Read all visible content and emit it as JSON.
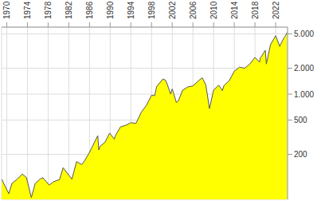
{
  "chart_data": {
    "type": "area",
    "log": "y",
    "grid": true,
    "color": "#ffff00",
    "xlim": [
      1969,
      2024.3
    ],
    "xticks": [
      1970,
      1974,
      1978,
      1982,
      1986,
      1990,
      1994,
      1998,
      2002,
      2006,
      2010,
      2014,
      2018,
      2022
    ],
    "ylim": [
      60,
      6000
    ],
    "yticks": [
      200,
      500,
      {
        "value": 1000,
        "label": "1.000"
      },
      {
        "value": 2000,
        "label": "2.000"
      },
      {
        "value": 5000,
        "label": "5.000"
      }
    ],
    "x": [
      1969,
      1970.4,
      1971,
      1972,
      1973,
      1973.8,
      1974.75,
      1975.5,
      1976.5,
      1977,
      1978.2,
      1979,
      1980.2,
      1980.9,
      1982.6,
      1983.5,
      1984.5,
      1985,
      1986,
      1987.6,
      1987.8,
      1988,
      1989,
      1989.9,
      1990.8,
      1991,
      1992,
      1993,
      1994,
      1995,
      1996,
      1997,
      1998,
      1998.6,
      1999,
      2000.2,
      2000.7,
      2001,
      2001.7,
      2002,
      2002.8,
      2003.2,
      2004,
      2005,
      2006,
      2007,
      2007.8,
      2008.5,
      2009.2,
      2010,
      2011,
      2011.7,
      2012,
      2013,
      2014,
      2015,
      2016,
      2017,
      2018,
      2018.9,
      2019,
      2020,
      2020.2,
      2021,
      2022,
      2022.8,
      2023,
      2023.6,
      2023.9,
      2024.2
    ],
    "values": [
      103,
      70,
      92,
      103,
      118,
      108,
      63,
      92,
      104,
      107,
      88,
      96,
      102,
      140,
      103,
      165,
      152,
      167,
      211,
      330,
      225,
      247,
      277,
      353,
      300,
      330,
      417,
      435,
      466,
      459,
      615,
      740,
      970,
      960,
      1229,
      1500,
      1450,
      1320,
      1000,
      1150,
      800,
      840,
      1111,
      1212,
      1248,
      1418,
      1550,
      1280,
      680,
      1115,
      1271,
      1100,
      1258,
      1426,
      1848,
      2058,
      2000,
      2238,
      2673,
      2350,
      2600,
      3230,
      2240,
      3756,
      4766,
      3580,
      3840,
      4500,
      4760,
      5200
    ]
  }
}
